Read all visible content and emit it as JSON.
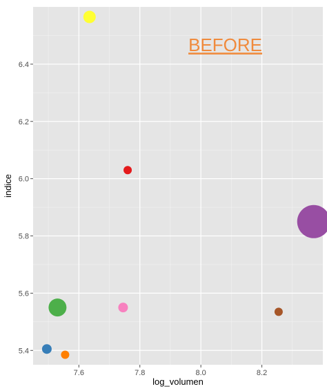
{
  "chart_data": {
    "type": "scatter",
    "title": "",
    "xlabel": "log_volumen",
    "ylabel": "indice",
    "xlim": [
      7.45,
      8.4
    ],
    "ylim": [
      5.35,
      6.6
    ],
    "x_ticks": [
      7.6,
      7.8,
      8.0,
      8.2
    ],
    "x_tick_labels": [
      "7.6",
      "7.8",
      "8.0",
      "8.2"
    ],
    "y_ticks": [
      5.4,
      5.6,
      5.8,
      6.0,
      6.2,
      6.4
    ],
    "y_tick_labels": [
      "5.4",
      "5.6",
      "5.8",
      "6.0",
      "6.2",
      "6.4"
    ],
    "grid": true,
    "panel_background": "#e5e5e5",
    "grid_color": "#ffffff",
    "legend": "none",
    "points": [
      {
        "x": 7.635,
        "y": 6.565,
        "size": 9,
        "color": "#ffff33"
      },
      {
        "x": 7.76,
        "y": 6.03,
        "size": 6,
        "color": "#e41a1c"
      },
      {
        "x": 8.37,
        "y": 5.85,
        "size": 24,
        "color": "#984ea3"
      },
      {
        "x": 7.53,
        "y": 5.55,
        "size": 13,
        "color": "#4daf4a"
      },
      {
        "x": 7.745,
        "y": 5.55,
        "size": 7,
        "color": "#f781bf"
      },
      {
        "x": 8.255,
        "y": 5.535,
        "size": 6,
        "color": "#a65628"
      },
      {
        "x": 7.495,
        "y": 5.405,
        "size": 7,
        "color": "#377eb8"
      },
      {
        "x": 7.555,
        "y": 5.385,
        "size": 6,
        "color": "#ff7f00"
      }
    ],
    "annotation": {
      "text": "BEFORE",
      "x": 8.08,
      "y": 6.445,
      "color": "#f08a3c"
    }
  }
}
